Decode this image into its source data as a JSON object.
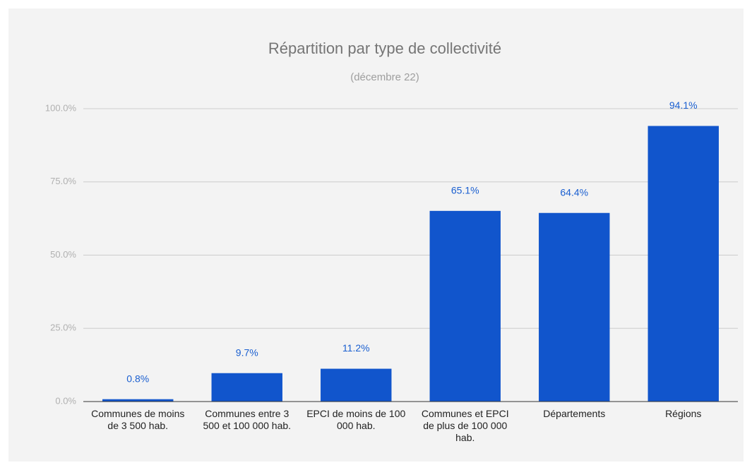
{
  "chart_data": {
    "type": "bar",
    "title": "Répartition par type de collectivité",
    "subtitle": "(décembre 22)",
    "categories": [
      "Communes de moins de 3 500 hab.",
      "Communes entre 3 500 et 100 000 hab.",
      "EPCI de moins de 100 000 hab.",
      "Communes et EPCI de plus de 100 000 hab.",
      "Départements",
      "Régions"
    ],
    "values": [
      0.8,
      9.7,
      11.2,
      65.1,
      64.4,
      94.1
    ],
    "value_labels": [
      "0.8%",
      "9.7%",
      "11.2%",
      "65.1%",
      "64.4%",
      "94.1%"
    ],
    "color": "#1155cc",
    "ylim": [
      0,
      100
    ],
    "yticks": [
      {
        "value": 0,
        "label": "0.0%"
      },
      {
        "value": 25,
        "label": "25.0%"
      },
      {
        "value": 50,
        "label": "50.0%"
      },
      {
        "value": 75,
        "label": "75.0%"
      },
      {
        "value": 100,
        "label": "100.0%"
      }
    ],
    "grid": true
  }
}
